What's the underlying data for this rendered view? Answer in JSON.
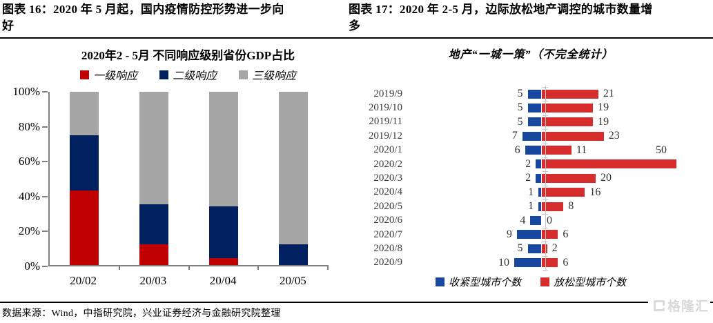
{
  "figure": {
    "left_caption": "图表 16：2020 年 5 月起，国内疫情防控形势进一步向\n好",
    "right_caption": "图表 17：2020 年 2-5 月，边际放松地产调控的城市数量增\n多"
  },
  "footer": {
    "source": "数据来源：Wind，中指研究院，兴业证券经济与金融研究院整理",
    "logo_text": "格隆汇"
  },
  "chart_data": [
    {
      "type": "bar",
      "orientation": "vertical",
      "stacked": true,
      "title": "2020年2 - 5月 不同响应级别省份GDP占比",
      "categories": [
        "20/02",
        "20/03",
        "20/04",
        "20/05"
      ],
      "series": [
        {
          "name": "一级响应",
          "color": "#C00000",
          "values": [
            43,
            12,
            4,
            0
          ]
        },
        {
          "name": "二级响应",
          "color": "#002060",
          "values": [
            32,
            23,
            30,
            12
          ]
        },
        {
          "name": "三级响应",
          "color": "#A6A6A6",
          "values": [
            25,
            65,
            66,
            88
          ]
        }
      ],
      "y_ticks": [
        "0%",
        "20%",
        "40%",
        "60%",
        "80%",
        "100%"
      ],
      "ylim": [
        0,
        100
      ],
      "unit": "percent of GDP",
      "legend_position": "top",
      "grid": false
    },
    {
      "type": "bar",
      "orientation": "horizontal",
      "stacked": false,
      "title": "地产“一城一策”（不完全统计）",
      "categories": [
        "2019/9",
        "2019/10",
        "2019/11",
        "2019/12",
        "2020/1",
        "2020/2",
        "2020/3",
        "2020/4",
        "2020/5",
        "2020/6",
        "2020/7",
        "2020/8",
        "2020/9"
      ],
      "series": [
        {
          "name": "收紧型城市个数",
          "color": "#17479E",
          "direction": "left",
          "values": [
            5,
            5,
            5,
            7,
            6,
            2,
            2,
            1,
            1,
            4,
            9,
            5,
            10
          ]
        },
        {
          "name": "放松型城市个数",
          "color": "#D62C2C",
          "direction": "right",
          "values": [
            21,
            19,
            19,
            23,
            11,
            50,
            20,
            16,
            8,
            0,
            6,
            2,
            6
          ]
        }
      ],
      "data_labels": true,
      "legend_position": "bottom",
      "grid": false
    }
  ]
}
